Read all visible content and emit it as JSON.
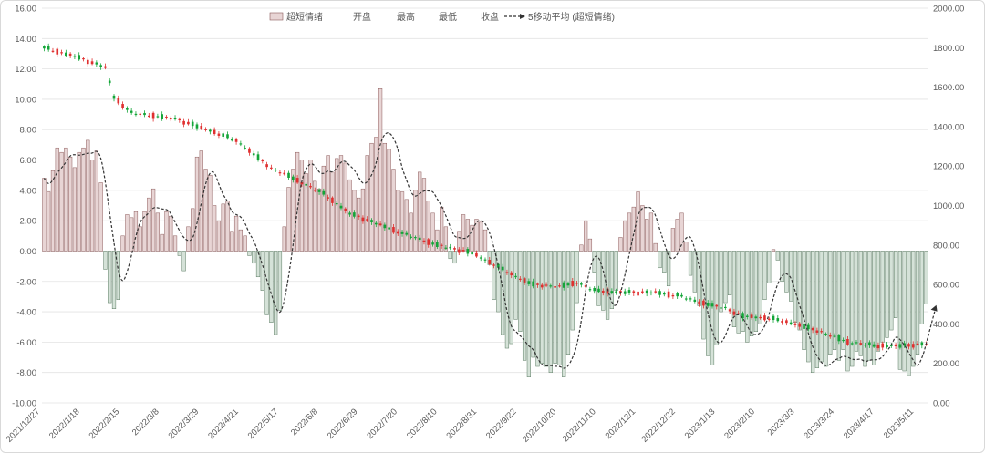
{
  "chart_data": {
    "type": "bar+candlestick+line",
    "legend": {
      "position": "top",
      "entries": [
        {
          "label": "超短情绪",
          "kind": "bar"
        },
        {
          "label": "开盘",
          "kind": "none"
        },
        {
          "label": "最高",
          "kind": "none"
        },
        {
          "label": "最低",
          "kind": "none"
        },
        {
          "label": "收盘",
          "kind": "none"
        },
        {
          "label": "5移动平均 (超短情绪)",
          "kind": "dashed-line"
        }
      ]
    },
    "y_left": {
      "min": -10,
      "max": 16,
      "step": 2,
      "ticks": [
        "-10.00",
        "-8.00",
        "-6.00",
        "-4.00",
        "-2.00",
        "0.00",
        "2.00",
        "4.00",
        "6.00",
        "8.00",
        "10.00",
        "12.00",
        "14.00",
        "16.00"
      ]
    },
    "y_right": {
      "min": 0,
      "max": 2000,
      "step": 200,
      "ticks": [
        "0.00",
        "200.00",
        "400.00",
        "600.00",
        "800.00",
        "1000.00",
        "1200.00",
        "1400.00",
        "1600.00",
        "1800.00",
        "2000.00"
      ]
    },
    "x_ticks": [
      "2021/12/27",
      "2022/1/18",
      "2022/2/15",
      "2022/3/8",
      "2022/3/29",
      "2022/4/21",
      "2022/5/17",
      "2022/6/8",
      "2022/6/29",
      "2022/7/20",
      "2022/8/10",
      "2022/8/31",
      "2022/9/22",
      "2022/10/20",
      "2022/11/10",
      "2022/12/1",
      "2022/12/22",
      "2023/1/13",
      "2023/2/10",
      "2023/3/3",
      "2023/3/24",
      "2023/4/17",
      "2023/5/11"
    ],
    "grid": "horizontal",
    "colors": {
      "pos_fill": "#e8d5d5",
      "pos_stroke": "#8c5a5a",
      "neg_fill": "#d5e2d8",
      "neg_stroke": "#5a7a62",
      "up": "#e03030",
      "down": "#13a538",
      "ma": "#333333"
    },
    "emotion_values": [
      4.8,
      3.9,
      5.3,
      6.8,
      6.5,
      6.8,
      6.2,
      5.5,
      6.5,
      6.8,
      7.3,
      6.0,
      6.6,
      4.5,
      -1.2,
      -3.4,
      -3.8,
      -3.2,
      1.0,
      2.4,
      2.2,
      2.6,
      1.6,
      2.6,
      3.5,
      4.1,
      2.5,
      1.1,
      2.6,
      2.3,
      1.0,
      -0.3,
      -1.3,
      1.6,
      2.8,
      6.2,
      6.6,
      5.4,
      5.0,
      3.0,
      2.0,
      3.1,
      3.3,
      1.3,
      2.3,
      1.4,
      1.0,
      -0.3,
      -0.8,
      -1.7,
      -2.6,
      -4.2,
      -4.7,
      -5.5,
      -3.9,
      1.6,
      4.2,
      5.4,
      6.5,
      6.0,
      5.1,
      6.0,
      4.6,
      4.1,
      5.6,
      6.3,
      5.2,
      6.1,
      6.3,
      5.8,
      4.7,
      4.0,
      3.5,
      4.1,
      6.3,
      7.1,
      7.5,
      10.7,
      7.1,
      6.7,
      5.4,
      4.0,
      3.9,
      3.4,
      2.5,
      4.0,
      5.2,
      4.8,
      3.3,
      2.5,
      1.4,
      2.9,
      1.6,
      -0.5,
      -0.8,
      1.3,
      2.4,
      2.1,
      1.7,
      2.1,
      1.9,
      1.4,
      -0.9,
      -3.2,
      -4.0,
      -5.5,
      -6.4,
      -6.1,
      -4.5,
      -5.3,
      -7.2,
      -8.3,
      -7.0,
      -7.6,
      -7.4,
      -7.6,
      -8.0,
      -7.4,
      -7.5,
      -8.3,
      -6.8,
      -5.2,
      -3.4,
      0.4,
      2.0,
      0.8,
      -1.4,
      -3.6,
      -3.9,
      -4.5,
      -3.8,
      -2.6,
      0.9,
      2.0,
      2.5,
      2.9,
      3.9,
      3.0,
      2.1,
      2.5,
      0.5,
      -1.1,
      -1.4,
      -2.3,
      1.5,
      2.1,
      2.5,
      0.6,
      -1.6,
      -2.7,
      -3.6,
      -5.8,
      -6.9,
      -7.5,
      -6.2,
      -4.0,
      -3.4,
      -2.9,
      -5.0,
      -5.4,
      -5.3,
      -6.0,
      -5.6,
      -5.3,
      -4.8,
      -3.2,
      -2.1,
      0.1,
      -0.6,
      -2.0,
      -2.7,
      -3.3,
      -4.7,
      -5.2,
      -6.5,
      -7.3,
      -8.0,
      -7.7,
      -7.3,
      -7.6,
      -6.8,
      -6.5,
      -7.2,
      -6.5,
      -7.9,
      -7.6,
      -6.6,
      -6.9,
      -7.6,
      -7.2,
      -7.5,
      -6.6,
      -6.0,
      -5.7,
      -5.2,
      -4.4,
      -7.8,
      -7.9,
      -8.2,
      -7.6,
      -6.8,
      -4.8,
      -3.5
    ]
  }
}
